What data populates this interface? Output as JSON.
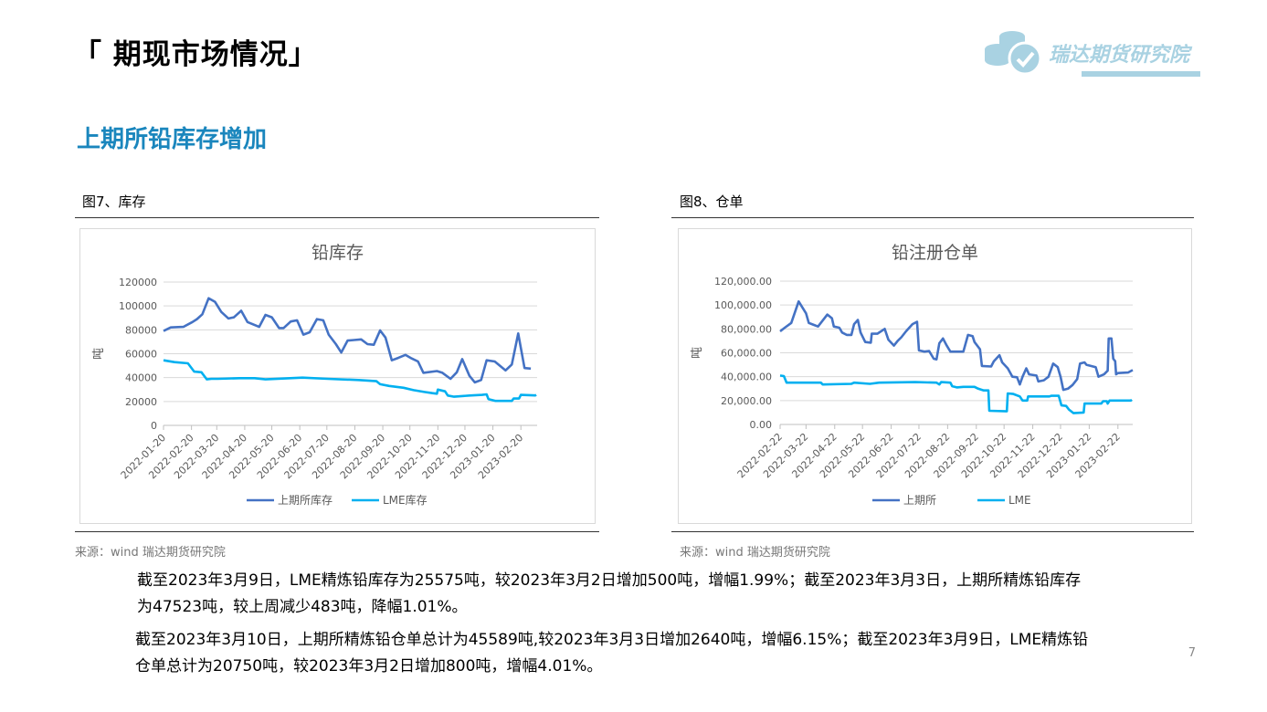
{
  "header": {
    "title": "「 期现市场情况」",
    "section": "上期所铅库存增加",
    "logo_text": "瑞达期货研究院"
  },
  "figures": [
    {
      "caption": "图7、库存",
      "source": "来源：wind   瑞达期货研究院"
    },
    {
      "caption": "图8、仓单",
      "source": "来源：wind   瑞达期货研究院"
    }
  ],
  "colors": {
    "shfe": "#4472c4",
    "lme": "#00b0f0",
    "accent": "#1a86bd"
  },
  "chart_data": [
    {
      "type": "line",
      "title": "铅库存",
      "ylabel": "吨",
      "ylim": [
        0,
        120000
      ],
      "yticks": [
        "0",
        "20000",
        "40000",
        "60000",
        "80000",
        "100000",
        "120000"
      ],
      "xrange": [
        "2022-01-20",
        "2023-03-10"
      ],
      "xticks": [
        "2022-01-20",
        "2022-02-20",
        "2022-03-20",
        "2022-04-20",
        "2022-05-20",
        "2022-06-20",
        "2022-07-20",
        "2022-08-20",
        "2022-09-20",
        "2022-10-20",
        "2022-11-20",
        "2022-12-20",
        "2023-01-20",
        "2023-02-20"
      ],
      "grid": true,
      "legend": "bottom",
      "series": [
        {
          "name": "上期所库存",
          "color": "#4472c4",
          "points": [
            [
              "2022-01-20",
              79000
            ],
            [
              "2022-01-28",
              82000
            ],
            [
              "2022-02-11",
              82500
            ],
            [
              "2022-02-21",
              86500
            ],
            [
              "2022-02-26",
              89000
            ],
            [
              "2022-03-04",
              93000
            ],
            [
              "2022-03-11",
              106500
            ],
            [
              "2022-03-18",
              103500
            ],
            [
              "2022-03-25",
              95000
            ],
            [
              "2022-04-02",
              89500
            ],
            [
              "2022-04-08",
              90500
            ],
            [
              "2022-04-16",
              96000
            ],
            [
              "2022-04-23",
              86500
            ],
            [
              "2022-05-06",
              82500
            ],
            [
              "2022-05-13",
              92500
            ],
            [
              "2022-05-20",
              90500
            ],
            [
              "2022-05-28",
              81500
            ],
            [
              "2022-06-02",
              81500
            ],
            [
              "2022-06-10",
              87000
            ],
            [
              "2022-06-17",
              88000
            ],
            [
              "2022-06-24",
              76000
            ],
            [
              "2022-07-01",
              78000
            ],
            [
              "2022-07-09",
              89000
            ],
            [
              "2022-07-16",
              88000
            ],
            [
              "2022-07-22",
              76000
            ],
            [
              "2022-07-30",
              68000
            ],
            [
              "2022-08-05",
              61000
            ],
            [
              "2022-08-12",
              71000
            ],
            [
              "2022-08-19",
              71500
            ],
            [
              "2022-08-27",
              72000
            ],
            [
              "2022-09-03",
              68000
            ],
            [
              "2022-09-10",
              67500
            ],
            [
              "2022-09-17",
              79500
            ],
            [
              "2022-09-23",
              73500
            ],
            [
              "2022-09-30",
              54500
            ],
            [
              "2022-10-07",
              56500
            ],
            [
              "2022-10-15",
              59000
            ],
            [
              "2022-10-22",
              56000
            ],
            [
              "2022-10-29",
              53500
            ],
            [
              "2022-11-04",
              44000
            ],
            [
              "2022-11-19",
              45500
            ],
            [
              "2022-11-25",
              44000
            ],
            [
              "2022-12-04",
              39000
            ],
            [
              "2022-12-11",
              44500
            ],
            [
              "2022-12-17",
              55500
            ],
            [
              "2022-12-25",
              41500
            ],
            [
              "2022-12-31",
              36000
            ],
            [
              "2023-01-07",
              38000
            ],
            [
              "2023-01-13",
              54500
            ],
            [
              "2023-01-22",
              53500
            ],
            [
              "2023-02-03",
              46000
            ],
            [
              "2023-02-10",
              51000
            ],
            [
              "2023-02-17",
              77000
            ],
            [
              "2023-02-24",
              48000
            ],
            [
              "2023-03-03",
              47523
            ]
          ]
        },
        {
          "name": "LME库存",
          "color": "#00b0f0",
          "points": [
            [
              "2022-01-20",
              54500
            ],
            [
              "2022-02-01",
              53000
            ],
            [
              "2022-02-16",
              52000
            ],
            [
              "2022-02-23",
              45000
            ],
            [
              "2022-03-03",
              44500
            ],
            [
              "2022-03-09",
              38500
            ],
            [
              "2022-03-14",
              39000
            ],
            [
              "2022-03-21",
              39000
            ],
            [
              "2022-04-14",
              39500
            ],
            [
              "2022-05-01",
              39500
            ],
            [
              "2022-05-13",
              38500
            ],
            [
              "2022-06-23",
              40000
            ],
            [
              "2022-07-21",
              39000
            ],
            [
              "2022-08-24",
              38000
            ],
            [
              "2022-09-13",
              37000
            ],
            [
              "2022-09-17",
              34500
            ],
            [
              "2022-09-27",
              33000
            ],
            [
              "2022-10-13",
              31500
            ],
            [
              "2022-10-24",
              29500
            ],
            [
              "2022-11-05",
              28000
            ],
            [
              "2022-11-14",
              27000
            ],
            [
              "2022-11-19",
              26500
            ],
            [
              "2022-11-20",
              30000
            ],
            [
              "2022-11-28",
              28500
            ],
            [
              "2022-12-01",
              25000
            ],
            [
              "2022-12-08",
              24000
            ],
            [
              "2022-12-25",
              25000
            ],
            [
              "2023-01-08",
              25500
            ],
            [
              "2023-01-13",
              26000
            ],
            [
              "2023-01-15",
              22000
            ],
            [
              "2023-01-23",
              20500
            ],
            [
              "2023-02-10",
              20500
            ],
            [
              "2023-02-12",
              22500
            ],
            [
              "2023-02-18",
              22500
            ],
            [
              "2023-02-20",
              25500
            ],
            [
              "2023-03-08",
              25075
            ],
            [
              "2023-03-09",
              25575
            ]
          ]
        }
      ]
    },
    {
      "type": "line",
      "title": "铅注册仓单",
      "ylabel": "吨",
      "ylim": [
        0,
        120000
      ],
      "yticks": [
        "0.00",
        "20,000.00",
        "40,000.00",
        "60,000.00",
        "80,000.00",
        "100,000.00",
        "120,000.00"
      ],
      "xrange": [
        "2022-02-22",
        "2023-03-10"
      ],
      "xticks": [
        "2022-02-22",
        "2022-03-22",
        "2022-04-22",
        "2022-05-22",
        "2022-06-22",
        "2022-07-22",
        "2022-08-22",
        "2022-09-22",
        "2022-10-22",
        "2022-11-22",
        "2022-12-22",
        "2023-01-22",
        "2023-02-22"
      ],
      "grid": true,
      "legend": "bottom",
      "series": [
        {
          "name": "上期所",
          "color": "#4472c4",
          "points": [
            [
              "2022-02-22",
              78000
            ],
            [
              "2022-02-27",
              81000
            ],
            [
              "2022-03-06",
              85000
            ],
            [
              "2022-03-14",
              103000
            ],
            [
              "2022-03-22",
              93000
            ],
            [
              "2022-03-25",
              85000
            ],
            [
              "2022-04-04",
              82000
            ],
            [
              "2022-04-14",
              92000
            ],
            [
              "2022-04-19",
              89000
            ],
            [
              "2022-04-21",
              82000
            ],
            [
              "2022-04-27",
              81000
            ],
            [
              "2022-04-30",
              77000
            ],
            [
              "2022-05-05",
              75000
            ],
            [
              "2022-05-10",
              75000
            ],
            [
              "2022-05-13",
              84000
            ],
            [
              "2022-05-17",
              87500
            ],
            [
              "2022-05-20",
              77000
            ],
            [
              "2022-05-25",
              69000
            ],
            [
              "2022-05-31",
              68500
            ],
            [
              "2022-06-01",
              76000
            ],
            [
              "2022-06-07",
              76000
            ],
            [
              "2022-06-15",
              80000
            ],
            [
              "2022-06-19",
              71000
            ],
            [
              "2022-06-25",
              66000
            ],
            [
              "2022-06-29",
              70000
            ],
            [
              "2022-07-03",
              73000
            ],
            [
              "2022-07-08",
              78000
            ],
            [
              "2022-07-15",
              84000
            ],
            [
              "2022-07-20",
              86000
            ],
            [
              "2022-07-22",
              62000
            ],
            [
              "2022-07-28",
              61000
            ],
            [
              "2022-08-02",
              61500
            ],
            [
              "2022-08-07",
              55000
            ],
            [
              "2022-08-10",
              54500
            ],
            [
              "2022-08-13",
              68000
            ],
            [
              "2022-08-17",
              72000
            ],
            [
              "2022-08-21",
              66000
            ],
            [
              "2022-08-25",
              61000
            ],
            [
              "2022-09-08",
              61000
            ],
            [
              "2022-09-13",
              75000
            ],
            [
              "2022-09-18",
              74000
            ],
            [
              "2022-09-20",
              69000
            ],
            [
              "2022-09-26",
              63000
            ],
            [
              "2022-09-28",
              49000
            ],
            [
              "2022-10-08",
              48500
            ],
            [
              "2022-10-11",
              53000
            ],
            [
              "2022-10-17",
              58000
            ],
            [
              "2022-10-20",
              52000
            ],
            [
              "2022-10-26",
              47000
            ],
            [
              "2022-10-31",
              40000
            ],
            [
              "2022-11-05",
              39500
            ],
            [
              "2022-11-08",
              33500
            ],
            [
              "2022-11-11",
              40000
            ],
            [
              "2022-11-15",
              47000
            ],
            [
              "2022-11-18",
              42000
            ],
            [
              "2022-11-26",
              41000
            ],
            [
              "2022-11-28",
              36000
            ],
            [
              "2022-12-04",
              37000
            ],
            [
              "2022-12-09",
              40000
            ],
            [
              "2022-12-14",
              51000
            ],
            [
              "2022-12-19",
              48000
            ],
            [
              "2022-12-22",
              40000
            ],
            [
              "2022-12-25",
              29000
            ],
            [
              "2022-12-30",
              30000
            ],
            [
              "2023-01-04",
              33000
            ],
            [
              "2023-01-09",
              38000
            ],
            [
              "2023-01-12",
              51000
            ],
            [
              "2023-01-17",
              52000
            ],
            [
              "2023-01-19",
              50000
            ],
            [
              "2023-01-29",
              48000
            ],
            [
              "2023-02-01",
              40000
            ],
            [
              "2023-02-07",
              42000
            ],
            [
              "2023-02-11",
              45000
            ],
            [
              "2023-02-12",
              72000
            ],
            [
              "2023-02-15",
              72000
            ],
            [
              "2023-02-17",
              55000
            ],
            [
              "2023-02-19",
              53000
            ],
            [
              "2023-02-20",
              42000
            ],
            [
              "2023-02-22",
              43000
            ],
            [
              "2023-03-05",
              43500
            ],
            [
              "2023-03-10",
              45589
            ]
          ]
        },
        {
          "name": "LME",
          "color": "#00b0f0",
          "points": [
            [
              "2022-02-22",
              41000
            ],
            [
              "2022-02-26",
              40500
            ],
            [
              "2022-03-01",
              35000
            ],
            [
              "2022-04-07",
              35000
            ],
            [
              "2022-04-09",
              33500
            ],
            [
              "2022-05-10",
              34000
            ],
            [
              "2022-05-13",
              35000
            ],
            [
              "2022-05-30",
              34000
            ],
            [
              "2022-06-09",
              35000
            ],
            [
              "2022-07-18",
              35500
            ],
            [
              "2022-08-10",
              35000
            ],
            [
              "2022-08-13",
              33500
            ],
            [
              "2022-08-15",
              35500
            ],
            [
              "2022-08-25",
              35000
            ],
            [
              "2022-08-27",
              32000
            ],
            [
              "2022-09-01",
              31000
            ],
            [
              "2022-09-08",
              31500
            ],
            [
              "2022-09-20",
              31500
            ],
            [
              "2022-09-24",
              30000
            ],
            [
              "2022-09-30",
              28500
            ],
            [
              "2022-10-05",
              28500
            ],
            [
              "2022-10-06",
              11500
            ],
            [
              "2022-10-25",
              11000
            ],
            [
              "2022-10-26",
              26000
            ],
            [
              "2022-11-01",
              25500
            ],
            [
              "2022-11-08",
              23500
            ],
            [
              "2022-11-11",
              20000
            ],
            [
              "2022-11-16",
              20000
            ],
            [
              "2022-11-17",
              23500
            ],
            [
              "2022-12-10",
              23500
            ],
            [
              "2022-12-12",
              24000
            ],
            [
              "2022-12-20",
              24000
            ],
            [
              "2022-12-23",
              16000
            ],
            [
              "2022-12-28",
              15500
            ],
            [
              "2022-12-31",
              12500
            ],
            [
              "2023-01-05",
              9500
            ],
            [
              "2023-01-16",
              10000
            ],
            [
              "2023-01-17",
              17500
            ],
            [
              "2023-02-04",
              17500
            ],
            [
              "2023-02-06",
              19500
            ],
            [
              "2023-02-10",
              19500
            ],
            [
              "2023-02-11",
              17500
            ],
            [
              "2023-02-13",
              20000
            ],
            [
              "2023-03-08",
              20000
            ],
            [
              "2023-03-09",
              20750
            ]
          ]
        }
      ]
    }
  ],
  "paragraphs": [
    "截至2023年3月9日，LME精炼铅库存为25575吨，较2023年3月2日增加500吨，增幅1.99%；截至2023年3月3日，上期所精炼铅库存为47523吨，较上周减少483吨，降幅1.01%。",
    "截至2023年3月10日，上期所精炼铅仓单总计为45589吨,较2023年3月3日增加2640吨，增幅6.15%；截至2023年3月9日，LME精炼铅仓单总计为20750吨，较2023年3月2日增加800吨，增幅4.01%。"
  ],
  "page_number": "7"
}
